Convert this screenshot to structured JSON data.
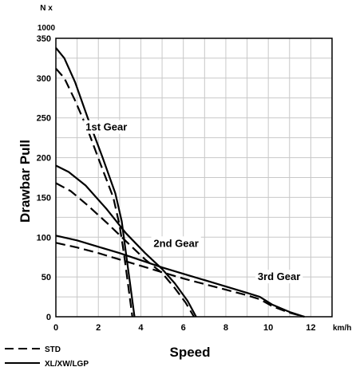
{
  "chart_data": {
    "type": "line",
    "title": "",
    "xlabel": "Speed",
    "ylabel": "Drawbar Pull",
    "y_unit": [
      "N x",
      "1000"
    ],
    "x_unit": "km/h",
    "xlim": [
      0,
      13
    ],
    "ylim": [
      0,
      350
    ],
    "x_ticks": [
      0,
      2,
      4,
      6,
      8,
      10,
      12
    ],
    "y_ticks": [
      0,
      50,
      100,
      150,
      200,
      250,
      300,
      350
    ],
    "grid": true,
    "annotations": [
      {
        "text": "1st Gear",
        "x": 1.4,
        "y": 238
      },
      {
        "text": "2nd Gear",
        "x": 4.6,
        "y": 92
      },
      {
        "text": "3rd Gear",
        "x": 9.5,
        "y": 50
      }
    ],
    "legend": {
      "placement": "bottom-left",
      "entries": [
        {
          "label": "STD",
          "style": "dashed"
        },
        {
          "label": "XL/XW/LGP",
          "style": "solid"
        }
      ]
    },
    "series": [
      {
        "style": "solid",
        "points": [
          [
            0,
            338
          ],
          [
            0.4,
            325
          ],
          [
            0.9,
            295
          ],
          [
            1.5,
            250
          ],
          [
            2.2,
            200
          ],
          [
            2.8,
            155
          ],
          [
            3.1,
            120
          ],
          [
            3.3,
            80
          ],
          [
            3.5,
            40
          ],
          [
            3.7,
            0
          ]
        ]
      },
      {
        "style": "dashed",
        "points": [
          [
            0,
            312
          ],
          [
            0.4,
            300
          ],
          [
            0.9,
            272
          ],
          [
            1.5,
            235
          ],
          [
            2.1,
            192
          ],
          [
            2.7,
            150
          ],
          [
            3.0,
            115
          ],
          [
            3.2,
            80
          ],
          [
            3.4,
            40
          ],
          [
            3.6,
            0
          ]
        ]
      },
      {
        "style": "solid",
        "points": [
          [
            0,
            190
          ],
          [
            0.6,
            182
          ],
          [
            1.4,
            165
          ],
          [
            2.4,
            135
          ],
          [
            3.3,
            105
          ],
          [
            4.2,
            80
          ],
          [
            5.0,
            60
          ],
          [
            5.6,
            42
          ],
          [
            6.2,
            20
          ],
          [
            6.6,
            0
          ]
        ]
      },
      {
        "style": "dashed",
        "points": [
          [
            0,
            168
          ],
          [
            0.7,
            158
          ],
          [
            1.5,
            140
          ],
          [
            2.4,
            118
          ],
          [
            3.3,
            95
          ],
          [
            4.2,
            72
          ],
          [
            5.0,
            55
          ],
          [
            5.6,
            36
          ],
          [
            6.1,
            18
          ],
          [
            6.5,
            0
          ]
        ]
      },
      {
        "style": "solid",
        "points": [
          [
            0,
            102
          ],
          [
            1.0,
            96
          ],
          [
            2.0,
            88
          ],
          [
            3.0,
            80
          ],
          [
            4.0,
            71
          ],
          [
            5.0,
            62
          ],
          [
            6.0,
            54
          ],
          [
            7.0,
            46
          ],
          [
            8.0,
            38
          ],
          [
            9.0,
            30
          ],
          [
            9.6,
            25
          ],
          [
            10.2,
            15
          ],
          [
            11.0,
            6
          ],
          [
            11.7,
            0
          ]
        ]
      },
      {
        "style": "dashed",
        "points": [
          [
            0,
            93
          ],
          [
            1.0,
            87
          ],
          [
            2.0,
            80
          ],
          [
            3.0,
            72
          ],
          [
            4.0,
            64
          ],
          [
            5.0,
            56
          ],
          [
            6.0,
            48
          ],
          [
            7.0,
            41
          ],
          [
            8.0,
            34
          ],
          [
            9.0,
            27
          ],
          [
            9.6,
            22
          ],
          [
            10.2,
            13
          ],
          [
            11.0,
            5
          ],
          [
            11.7,
            0
          ]
        ]
      }
    ]
  }
}
